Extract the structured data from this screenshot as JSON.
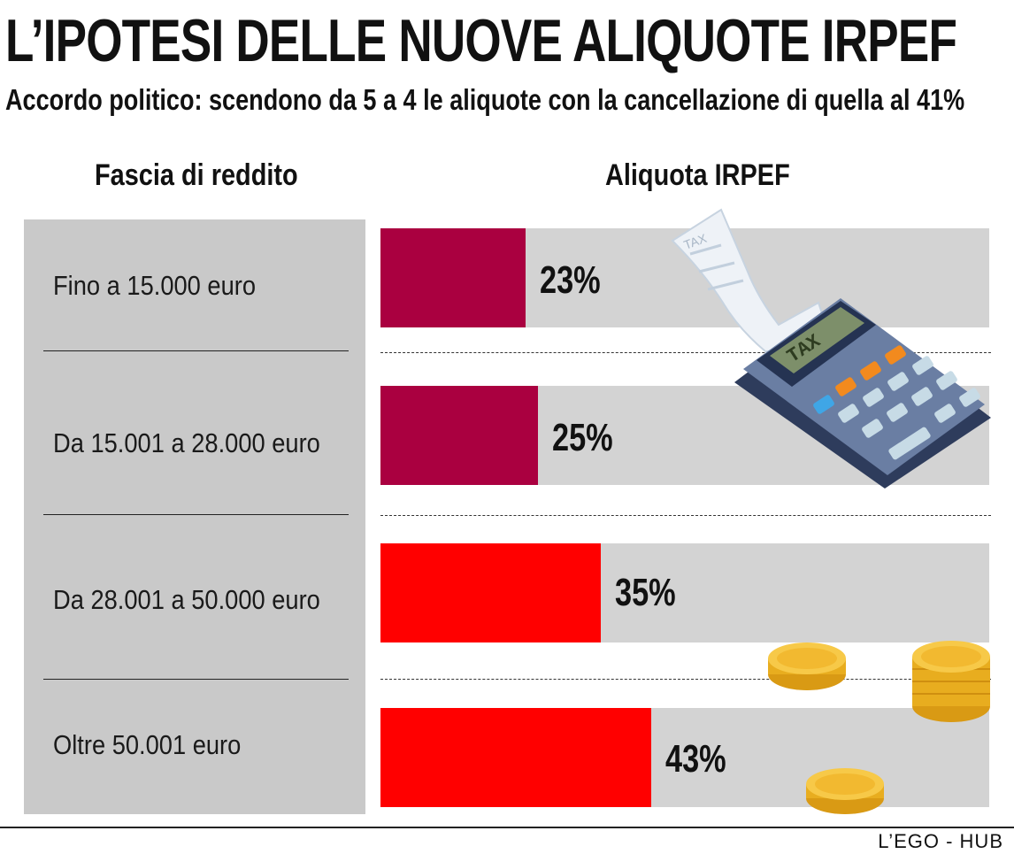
{
  "title": "L’IPOTESI DELLE NUOVE ALIQUOTE IRPEF",
  "subtitle": "Accordo politico: scendono da 5 a 4 le aliquote con la cancellazione di quella al 41%",
  "col_left": "Fascia di reddito",
  "col_right": "Aliquota IRPEF",
  "brand": "L’EGO - HUB",
  "colors": {
    "dark_red": "#aa0040",
    "red": "#ff0000",
    "bar_bg": "#d3d3d3",
    "panel": "#c9c9c9"
  },
  "icons": [
    "calculator-icon",
    "tax-receipt-icon",
    "coin-stack-icon",
    "coin-icon"
  ],
  "calculator_display": "TAX",
  "receipt_text": "TAX",
  "chart_data": {
    "type": "bar",
    "orientation": "horizontal",
    "categories": [
      "Fino a 15.000 euro",
      "Da 15.001 a 28.000 euro",
      "Da 28.001 a 50.000 euro",
      "Oltre 50.001 euro"
    ],
    "values": [
      23,
      25,
      35,
      43
    ],
    "value_labels": [
      "23%",
      "25%",
      "35%",
      "43%"
    ],
    "bar_colors": [
      "#aa0040",
      "#aa0040",
      "#ff0000",
      "#ff0000"
    ],
    "xlim": [
      0,
      100
    ],
    "grid": false,
    "legend": "none"
  }
}
